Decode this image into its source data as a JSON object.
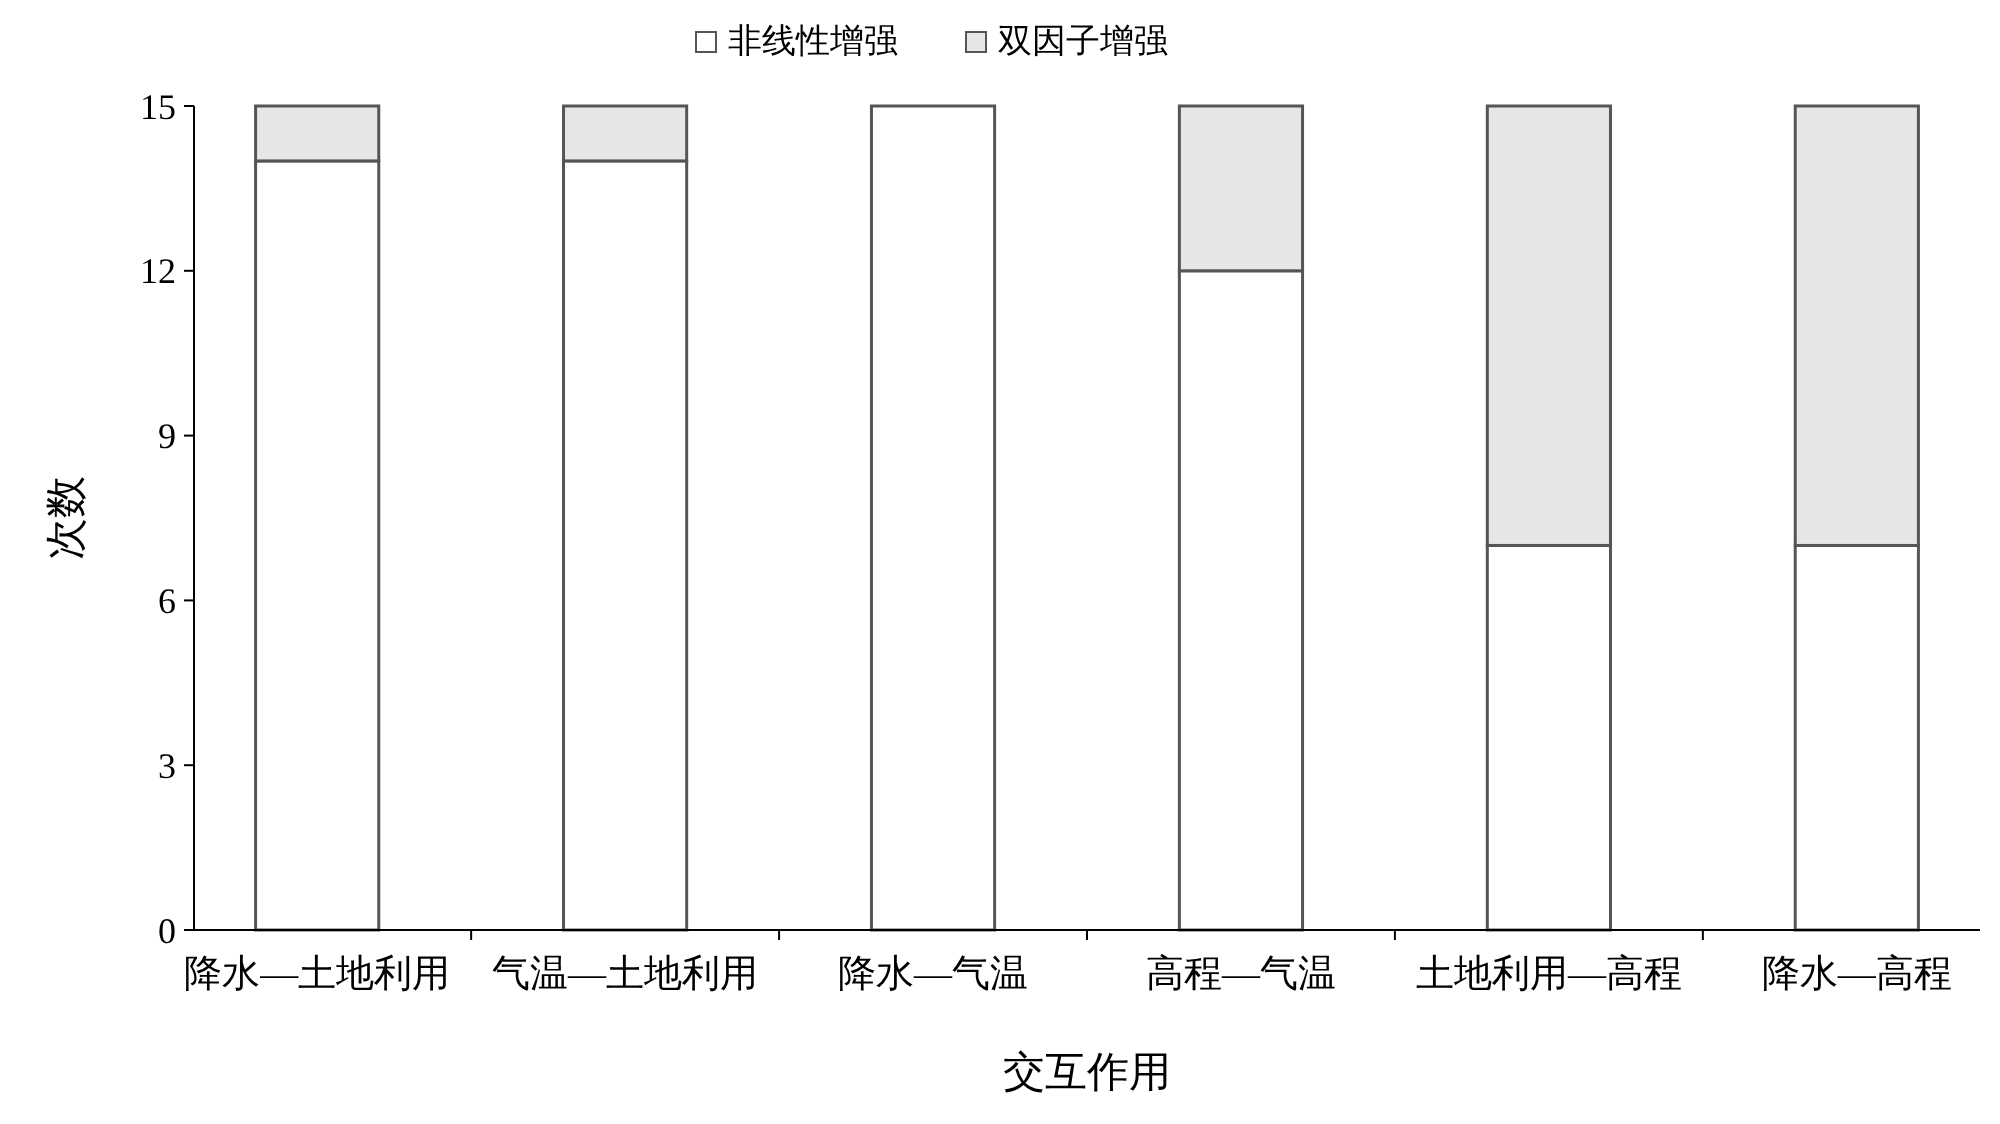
{
  "chart_data": {
    "type": "bar",
    "stacked": true,
    "xlabel": "交互作用",
    "ylabel": "次数",
    "categories": [
      "降水—土地利用",
      "气温—土地利用",
      "降水—气温",
      "高程—气温",
      "土地利用—高程",
      "降水—高程"
    ],
    "series": [
      {
        "name": "非线性增强",
        "color": "#ffffff",
        "values": [
          14,
          14,
          15,
          12,
          7,
          7
        ]
      },
      {
        "name": "双因子增强",
        "color": "#e6e6e6",
        "values": [
          1,
          1,
          0,
          3,
          8,
          8
        ]
      }
    ],
    "ylim": [
      0,
      15
    ],
    "yticks": [
      0,
      3,
      6,
      9,
      12,
      15
    ],
    "grid": false,
    "legend": "top"
  }
}
